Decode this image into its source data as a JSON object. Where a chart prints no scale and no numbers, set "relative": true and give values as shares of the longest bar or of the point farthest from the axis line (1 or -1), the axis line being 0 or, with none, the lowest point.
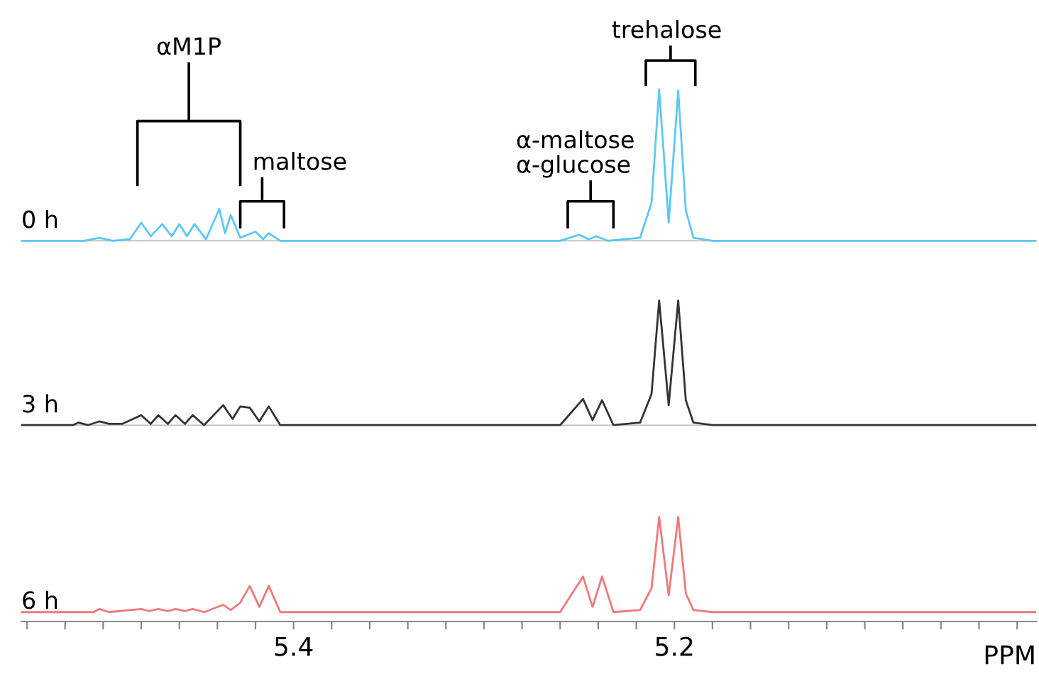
{
  "chart_data": [
    {
      "type": "line",
      "relative": true,
      "tick_labels": false,
      "xlim": [
        5.543,
        5.01
      ],
      "series": [
        {
          "name": "0 h",
          "color": "#5bc8f5",
          "x": [
            5.543,
            5.51,
            5.502,
            5.495,
            5.486,
            5.48,
            5.475,
            5.469,
            5.464,
            5.46,
            5.456,
            5.452,
            5.446,
            5.439,
            5.436,
            5.433,
            5.428,
            5.42,
            5.416,
            5.413,
            5.407,
            5.26,
            5.25,
            5.245,
            5.241,
            5.235,
            5.218,
            5.212,
            5.208,
            5.203,
            5.198,
            5.194,
            5.19,
            5.18,
            5.01
          ],
          "values": [
            0,
            0,
            0.02,
            0,
            0.01,
            0.12,
            0.03,
            0.11,
            0.03,
            0.11,
            0.03,
            0.11,
            0.01,
            0.21,
            0.05,
            0.17,
            0.02,
            0.06,
            0.01,
            0.05,
            0,
            0,
            0.04,
            0.01,
            0.03,
            0,
            0.02,
            0.25,
            1.0,
            0.12,
            0.99,
            0.2,
            0.02,
            0,
            0
          ]
        }
      ],
      "annotations": [
        "αM1P",
        "maltose",
        "α-maltose\nα-glucose",
        "trehalose"
      ]
    },
    {
      "type": "line",
      "relative": true,
      "tick_labels": false,
      "xlim": [
        5.543,
        5.01
      ],
      "series": [
        {
          "name": "3 h",
          "color": "#333333",
          "x": [
            5.543,
            5.516,
            5.513,
            5.508,
            5.502,
            5.497,
            5.49,
            5.48,
            5.475,
            5.471,
            5.466,
            5.462,
            5.457,
            5.453,
            5.447,
            5.437,
            5.432,
            5.428,
            5.423,
            5.418,
            5.413,
            5.407,
            5.26,
            5.248,
            5.243,
            5.238,
            5.232,
            5.218,
            5.212,
            5.208,
            5.203,
            5.198,
            5.194,
            5.19,
            5.18,
            5.01
          ],
          "values": [
            0,
            0,
            0.02,
            0,
            0.03,
            0.01,
            0.01,
            0.08,
            0.01,
            0.08,
            0.01,
            0.08,
            0.01,
            0.08,
            0,
            0.16,
            0.05,
            0.15,
            0.14,
            0.03,
            0.15,
            0,
            0,
            0.21,
            0.04,
            0.2,
            0,
            0.02,
            0.25,
            1.0,
            0.16,
            1.0,
            0.2,
            0.02,
            0,
            0
          ]
        }
      ]
    },
    {
      "type": "line",
      "relative": true,
      "tick_labels": "x",
      "xlabel": "PPM",
      "xlim": [
        5.543,
        5.01
      ],
      "xticks": [
        {
          "value": 5.54,
          "label": null
        },
        {
          "value": 5.52,
          "label": null
        },
        {
          "value": 5.5,
          "label": null
        },
        {
          "value": 5.48,
          "label": null
        },
        {
          "value": 5.46,
          "label": null
        },
        {
          "value": 5.44,
          "label": null
        },
        {
          "value": 5.42,
          "label": null
        },
        5.4,
        {
          "value": 5.38,
          "label": null
        },
        {
          "value": 5.36,
          "label": null
        },
        {
          "value": 5.34,
          "label": null
        },
        {
          "value": 5.32,
          "label": null
        },
        {
          "value": 5.3,
          "label": null
        },
        {
          "value": 5.28,
          "label": null
        },
        {
          "value": 5.26,
          "label": null
        },
        {
          "value": 5.24,
          "label": null
        },
        {
          "value": 5.22,
          "label": null
        },
        5.2,
        {
          "value": 5.18,
          "label": null
        },
        {
          "value": 5.16,
          "label": null
        },
        {
          "value": 5.14,
          "label": null
        },
        {
          "value": 5.12,
          "label": null
        },
        {
          "value": 5.1,
          "label": null
        },
        {
          "value": 5.08,
          "label": null
        },
        {
          "value": 5.06,
          "label": null
        },
        {
          "value": 5.04,
          "label": null
        },
        {
          "value": 5.02,
          "label": null
        }
      ],
      "series": [
        {
          "name": "6 h",
          "color": "#f0787a",
          "x": [
            5.543,
            5.505,
            5.502,
            5.497,
            5.48,
            5.476,
            5.471,
            5.466,
            5.462,
            5.457,
            5.453,
            5.447,
            5.437,
            5.433,
            5.428,
            5.423,
            5.418,
            5.413,
            5.407,
            5.26,
            5.248,
            5.243,
            5.238,
            5.232,
            5.218,
            5.212,
            5.208,
            5.203,
            5.198,
            5.194,
            5.19,
            5.18,
            5.01
          ],
          "values": [
            0.09,
            0.09,
            0.12,
            0.09,
            0.12,
            0.1,
            0.12,
            0.1,
            0.12,
            0.1,
            0.12,
            0.09,
            0.16,
            0.11,
            0.18,
            0.34,
            0.14,
            0.34,
            0.09,
            0.09,
            0.43,
            0.14,
            0.43,
            0.09,
            0.11,
            0.32,
            1.0,
            0.25,
            1.0,
            0.27,
            0.11,
            0.09,
            0.09
          ]
        }
      ]
    }
  ]
}
